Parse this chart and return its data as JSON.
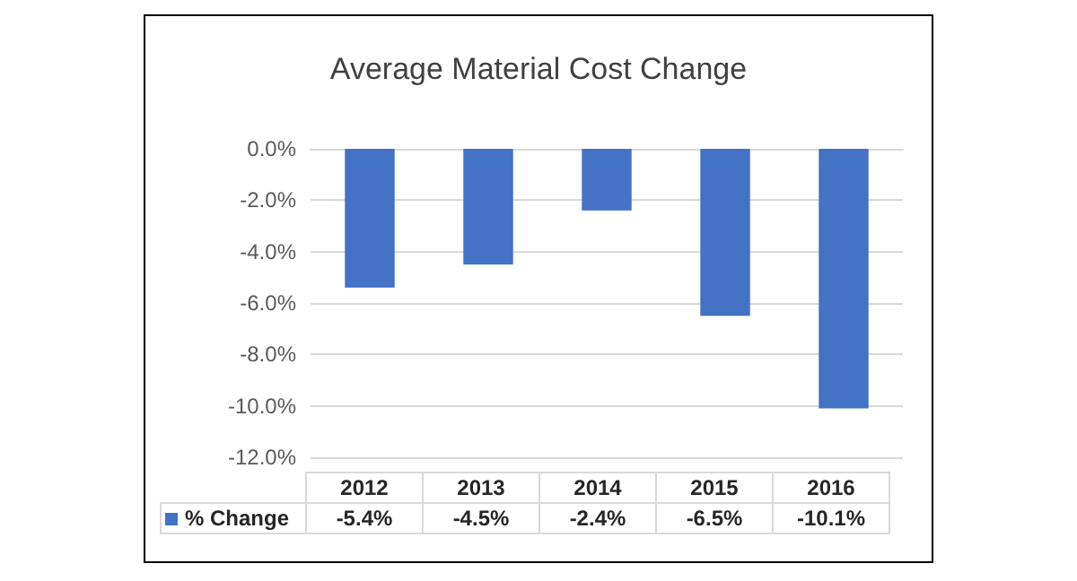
{
  "chart_data": {
    "type": "bar",
    "title": "Average Material Cost Change",
    "categories": [
      "2012",
      "2013",
      "2014",
      "2015",
      "2016"
    ],
    "series": [
      {
        "name": "% Change",
        "color": "#4472c4",
        "values": [
          -5.4,
          -4.5,
          -2.4,
          -6.5,
          -10.1
        ]
      }
    ],
    "ylim": [
      -12,
      0
    ],
    "yticks": [
      {
        "value": -12,
        "label": "-12.0%"
      },
      {
        "value": -10,
        "label": "-10.0%"
      },
      {
        "value": -8,
        "label": "-8.0%"
      },
      {
        "value": -6,
        "label": "-6.0%"
      },
      {
        "value": -4,
        "label": "-4.0%"
      },
      {
        "value": -2,
        "label": "-2.0%"
      },
      {
        "value": 0,
        "label": "0.0%"
      }
    ],
    "value_labels": [
      "-5.4%",
      "-4.5%",
      "-2.4%",
      "-6.5%",
      "-10.1%"
    ],
    "grid": true,
    "legend": "bottom"
  }
}
